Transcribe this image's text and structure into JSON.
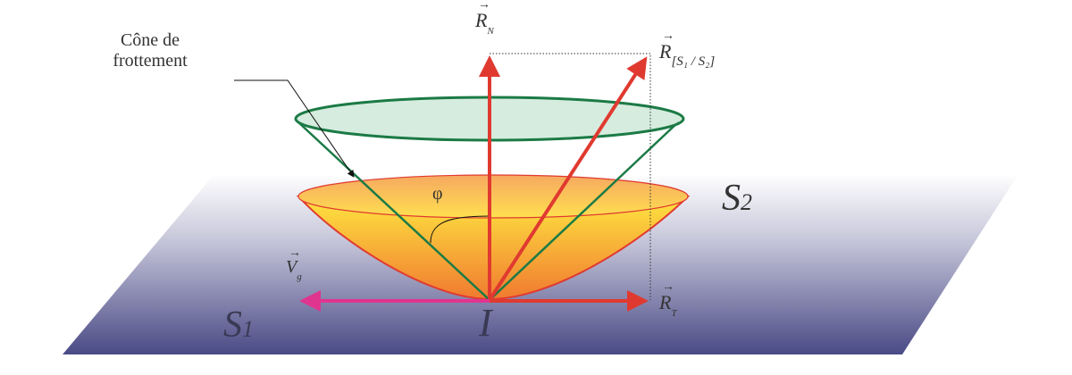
{
  "labels": {
    "cone_label_line1": "Cône de",
    "cone_label_line2": "frottement",
    "normal_force": {
      "symbol": "R",
      "subscript": "N"
    },
    "resultant_force": {
      "symbol": "R",
      "subscript": "[S₁ / S₂]"
    },
    "tangential_force": {
      "symbol": "R",
      "subscript": "T"
    },
    "sliding_velocity": {
      "symbol": "V",
      "subscript": "g"
    },
    "angle": "φ",
    "solid_1": {
      "symbol": "S",
      "subscript": "1"
    },
    "solid_2": {
      "symbol": "S",
      "subscript": "2"
    },
    "contact_point": "I",
    "vector_arrow": "→"
  },
  "colors": {
    "force_vectors": "#e03a30",
    "velocity_vector": "#e0358f",
    "friction_cone": "#1b7a45",
    "cone_top_fill": "#cfe9d9",
    "bowl_top": "#ffe640",
    "bowl_bottom": "#f07a30",
    "plane_top": "#ffffff",
    "plane_bottom": "#4a4a86"
  }
}
